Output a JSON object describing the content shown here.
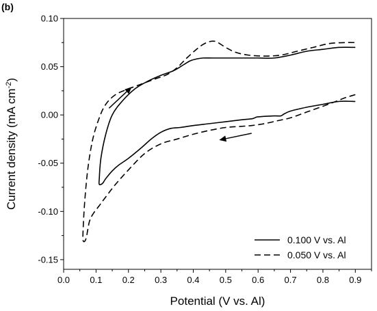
{
  "chart_data": {
    "type": "line",
    "panel_label": "(b)",
    "xlabel": "Potential (V vs. Al)",
    "ylabel_main": "Current density (mA cm",
    "ylabel_sup": "-2",
    "ylabel_end": ")",
    "xlim": [
      0.0,
      0.95
    ],
    "ylim": [
      -0.16,
      0.1
    ],
    "x_ticks": [
      0.0,
      0.1,
      0.2,
      0.3,
      0.4,
      0.5,
      0.6,
      0.7,
      0.8,
      0.9
    ],
    "x_tick_labels": [
      "0.0",
      "0.1",
      "0.2",
      "0.3",
      "0.4",
      "0.5",
      "0.6",
      "0.7",
      "0.8",
      "0.9"
    ],
    "y_ticks": [
      -0.15,
      -0.1,
      -0.05,
      0.0,
      0.05,
      0.1
    ],
    "y_tick_labels": [
      "-0.15",
      "-0.10",
      "-0.05",
      "0.00",
      "0.05",
      "0.10"
    ],
    "grid": false,
    "legend_position": "bottom-right",
    "series": [
      {
        "name": "0.100 V vs. Al",
        "style": "solid",
        "x": [
          0.9,
          0.85,
          0.8,
          0.75,
          0.7,
          0.68,
          0.67,
          0.65,
          0.6,
          0.59,
          0.58,
          0.55,
          0.5,
          0.45,
          0.4,
          0.36,
          0.33,
          0.3,
          0.27,
          0.24,
          0.2,
          0.17,
          0.15,
          0.13,
          0.12,
          0.11,
          0.11,
          0.115,
          0.13,
          0.15,
          0.18,
          0.22,
          0.26,
          0.3,
          0.34,
          0.37,
          0.39,
          0.41,
          0.43,
          0.46,
          0.5,
          0.55,
          0.6,
          0.65,
          0.7,
          0.75,
          0.8,
          0.85,
          0.9
        ],
        "y": [
          0.014,
          0.014,
          0.011,
          0.008,
          0.004,
          0.001,
          -0.001,
          -0.001,
          -0.002,
          -0.003,
          -0.004,
          -0.005,
          -0.007,
          -0.009,
          -0.011,
          -0.013,
          -0.014,
          -0.018,
          -0.025,
          -0.034,
          -0.045,
          -0.052,
          -0.058,
          -0.066,
          -0.071,
          -0.072,
          -0.066,
          -0.045,
          -0.02,
          0.0,
          0.014,
          0.027,
          0.035,
          0.041,
          0.046,
          0.052,
          0.056,
          0.058,
          0.059,
          0.059,
          0.059,
          0.059,
          0.059,
          0.059,
          0.062,
          0.066,
          0.068,
          0.07,
          0.07
        ]
      },
      {
        "name": "0.050 V vs. Al",
        "style": "dashed",
        "x": [
          0.9,
          0.87,
          0.84,
          0.8,
          0.75,
          0.7,
          0.66,
          0.62,
          0.58,
          0.54,
          0.5,
          0.45,
          0.4,
          0.35,
          0.3,
          0.25,
          0.2,
          0.16,
          0.13,
          0.11,
          0.09,
          0.08,
          0.075,
          0.07,
          0.065,
          0.06,
          0.06,
          0.065,
          0.075,
          0.09,
          0.11,
          0.13,
          0.16,
          0.2,
          0.24,
          0.28,
          0.32,
          0.35,
          0.38,
          0.41,
          0.43,
          0.45,
          0.47,
          0.5,
          0.53,
          0.57,
          0.62,
          0.67,
          0.72,
          0.77,
          0.82,
          0.87,
          0.9
        ],
        "y": [
          0.021,
          0.018,
          0.014,
          0.009,
          0.003,
          -0.003,
          -0.006,
          -0.009,
          -0.011,
          -0.012,
          -0.013,
          -0.016,
          -0.02,
          -0.025,
          -0.03,
          -0.04,
          -0.057,
          -0.072,
          -0.085,
          -0.094,
          -0.103,
          -0.11,
          -0.118,
          -0.127,
          -0.131,
          -0.13,
          -0.12,
          -0.09,
          -0.055,
          -0.025,
          -0.003,
          0.011,
          0.021,
          0.027,
          0.032,
          0.037,
          0.042,
          0.049,
          0.059,
          0.068,
          0.073,
          0.076,
          0.076,
          0.07,
          0.065,
          0.062,
          0.061,
          0.062,
          0.066,
          0.07,
          0.074,
          0.075,
          0.075
        ]
      }
    ],
    "annotations": [
      {
        "type": "arrow",
        "from": [
          0.14,
          0.007
        ],
        "to": [
          0.21,
          0.029
        ]
      },
      {
        "type": "arrow",
        "from": [
          0.58,
          -0.019
        ],
        "to": [
          0.48,
          -0.026
        ]
      }
    ]
  }
}
